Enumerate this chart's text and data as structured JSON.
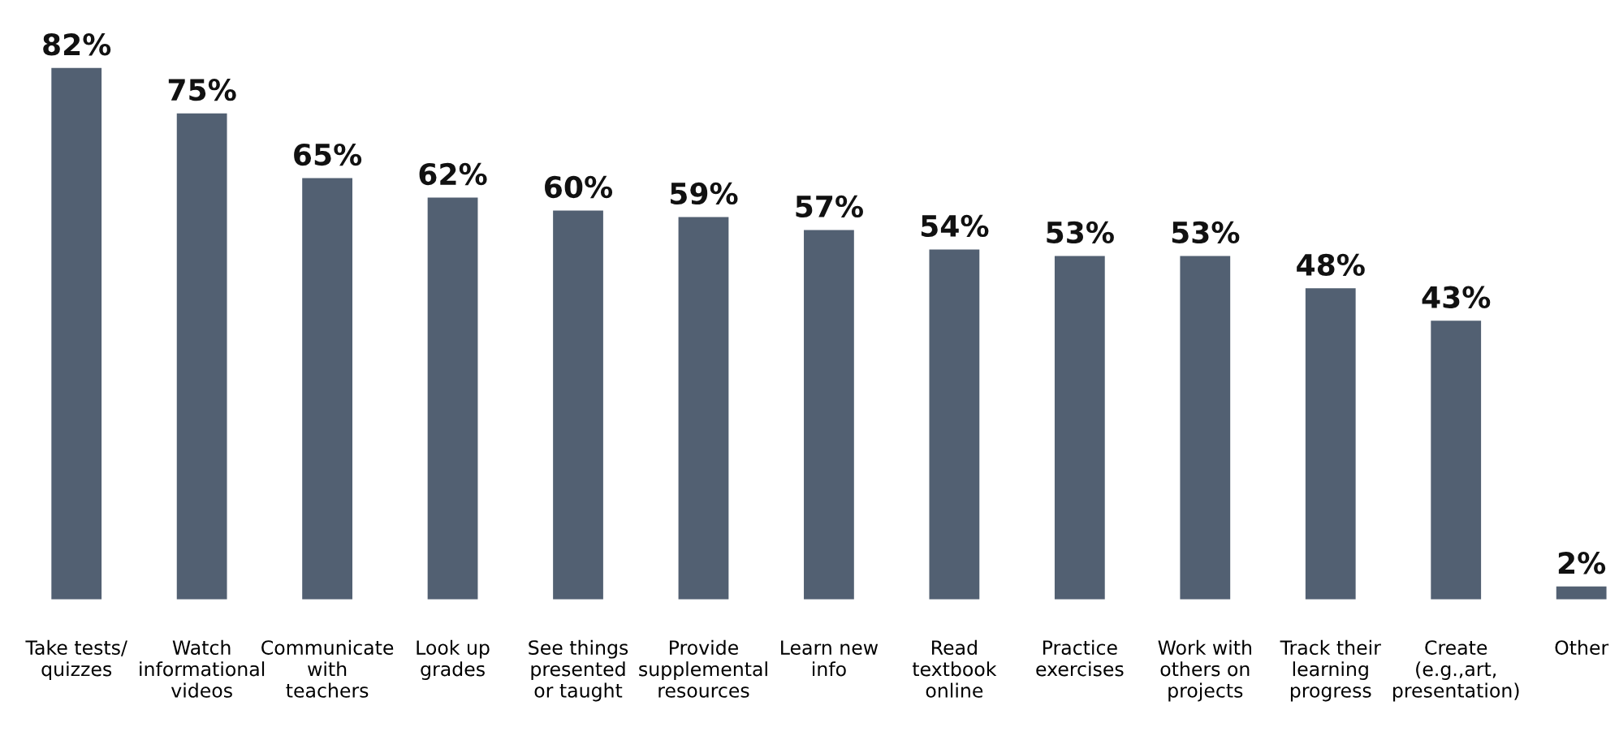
{
  "chart_data": {
    "type": "bar",
    "categories": [
      "Take tests/\nquizzes",
      "Watch\ninformational\nvideos",
      "Communicate\nwith\nteachers",
      "Look up\ngrades",
      "See things\npresented\nor taught",
      "Provide\nsupplemental\nresources",
      "Learn new\ninfo",
      "Read\ntextbook\nonline",
      "Practice\nexercises",
      "Work with\nothers on\nprojects",
      "Track their\nlearning\nprogress",
      "Create\n(e.g.,art,\npresentation)",
      "Other"
    ],
    "values": [
      82,
      75,
      65,
      62,
      60,
      59,
      57,
      54,
      53,
      53,
      48,
      43,
      2
    ],
    "value_labels": [
      "82%",
      "75%",
      "65%",
      "62%",
      "60%",
      "59%",
      "57%",
      "54%",
      "53%",
      "53%",
      "48%",
      "43%",
      "2%"
    ],
    "color": "#526072",
    "tick_labels": "x",
    "grid": false,
    "legend": false
  }
}
